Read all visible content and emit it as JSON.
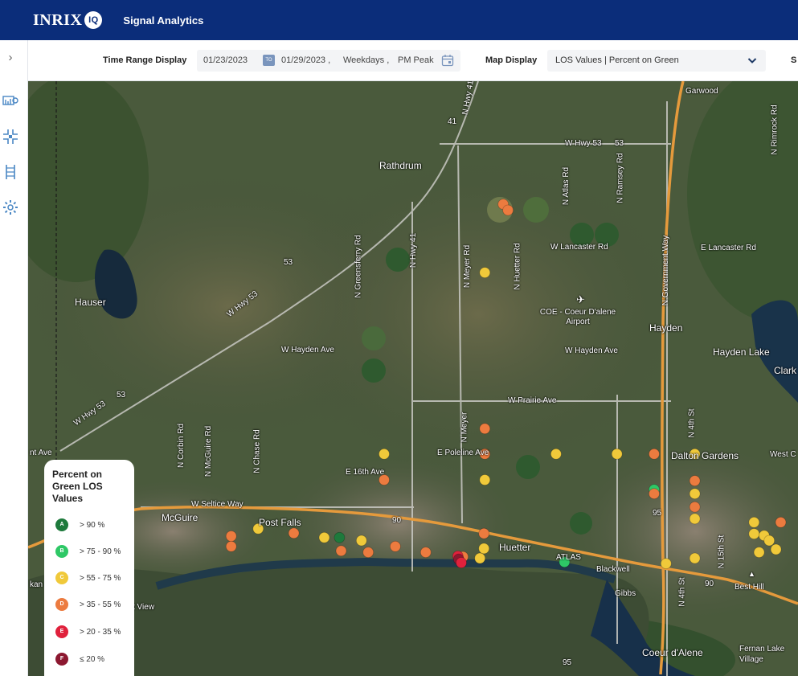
{
  "header": {
    "logo_text": "INRIX",
    "logo_badge": "IQ",
    "app_title": "Signal Analytics"
  },
  "sidebar": {
    "expand_icon": "chevron-right-icon",
    "icons": [
      "signal-dashboard-icon",
      "intersection-icon",
      "corridor-icon",
      "gear-icon"
    ]
  },
  "toolbar": {
    "time_range_label": "Time Range Display",
    "start_date": "01/23/2023",
    "to_badge": "TO",
    "end_date": "01/29/2023 ,",
    "day_type": "Weekdays ,",
    "period": "PM Peak",
    "map_display_label": "Map Display",
    "map_display_value": "LOS Values | Percent on Green",
    "cut_label": "S"
  },
  "map": {
    "labels": [
      "Garwood",
      "Rathdrum",
      "Hauser",
      "W Hwy 53",
      "W Hwy 53",
      "W Hwy 53",
      "41",
      "53",
      "53",
      "53",
      "N Hwy 41",
      "N Hwy 41",
      "N Greensferry Rd",
      "N Meyer Rd",
      "N Huetter Rd",
      "N Atlas Rd",
      "N Ramsey Rd",
      "N Rimrock Rd",
      "W Lancaster Rd",
      "E Lancaster Rd",
      "COE - Coeur D'alene Airport",
      "Hayden",
      "W Hayden Ave",
      "W Hayden Ave",
      "Hayden Lake",
      "Clark",
      "W Prairie Ave",
      "N Meyer",
      "E Poleline Ave",
      "E 16th Ave",
      "N Corbin Rd",
      "N McGuire Rd",
      "N Chase Rd",
      "W Seltice Way",
      "McGuire",
      "Post Falls",
      "Huetter",
      "ATLAS",
      "Blackwell",
      "Gibbs",
      "Dalton Gardens",
      "West C",
      "N 4th St",
      "N 4th St",
      "N 15th St",
      "Best Hill",
      "Fernan Lake Village",
      "Coeur d'Alene",
      "N Government Way",
      "95",
      "95",
      "90",
      "90",
      "nt Ave",
      "kan",
      "t View"
    ],
    "signal_colors": {
      "A": "#1e7a3c",
      "B": "#2ec866",
      "C": "#f0c93a",
      "D": "#ec7b3f",
      "E": "#e0213c",
      "F": "#8c1830"
    },
    "signals": [
      {
        "los": "D",
        "lat": 47.8172,
        "lon": -116.8862
      },
      {
        "los": "D",
        "lat": 47.8152,
        "lon": -116.8834
      },
      {
        "los": "C",
        "lat": 47.794,
        "lon": -116.8971
      },
      {
        "los": "D",
        "lat": 47.741,
        "lon": -116.8971
      },
      {
        "los": "C",
        "lat": 47.7324,
        "lon": -116.9566
      },
      {
        "los": "D",
        "lat": 47.7324,
        "lon": -116.8971
      },
      {
        "los": "C",
        "lat": 47.7324,
        "lon": -116.855
      },
      {
        "los": "C",
        "lat": 47.7324,
        "lon": -116.819
      },
      {
        "los": "D",
        "lat": 47.7324,
        "lon": -116.797
      },
      {
        "los": "C",
        "lat": 47.7324,
        "lon": -116.773
      },
      {
        "los": "D",
        "lat": 47.7236,
        "lon": -116.9566
      },
      {
        "los": "C",
        "lat": 47.7236,
        "lon": -116.8971
      },
      {
        "los": "B",
        "lat": 47.7203,
        "lon": -116.797
      },
      {
        "los": "D",
        "lat": 47.7189,
        "lon": -116.797
      },
      {
        "los": "D",
        "lat": 47.7233,
        "lon": -116.773
      },
      {
        "los": "C",
        "lat": 47.7189,
        "lon": -116.773
      },
      {
        "los": "D",
        "lat": 47.7144,
        "lon": -116.773
      },
      {
        "los": "C",
        "lat": 47.7104,
        "lon": -116.773
      },
      {
        "los": "C",
        "lat": 47.7092,
        "lon": -116.738
      },
      {
        "los": "D",
        "lat": 47.7092,
        "lon": -116.7222
      },
      {
        "los": "C",
        "lat": 47.7053,
        "lon": -116.738
      },
      {
        "los": "C",
        "lat": 47.7047,
        "lon": -116.732
      },
      {
        "los": "C",
        "lat": 47.703,
        "lon": -116.729
      },
      {
        "los": "C",
        "lat": 47.7,
        "lon": -116.725
      },
      {
        "los": "C",
        "lat": 47.699,
        "lon": -116.735
      },
      {
        "los": "C",
        "lat": 47.697,
        "lon": -116.773
      },
      {
        "los": "C",
        "lat": 47.6952,
        "lon": -116.79
      },
      {
        "los": "B",
        "lat": 47.6957,
        "lon": -116.85
      },
      {
        "los": "C",
        "lat": 47.697,
        "lon": -116.9
      },
      {
        "los": "D",
        "lat": 47.6975,
        "lon": -116.91
      },
      {
        "los": "E",
        "lat": 47.6977,
        "lon": -116.913
      },
      {
        "los": "D",
        "lat": 47.699,
        "lon": -116.932
      },
      {
        "los": "D",
        "lat": 47.701,
        "lon": -116.95
      },
      {
        "los": "C",
        "lat": 47.703,
        "lon": -116.97
      },
      {
        "los": "A",
        "lat": 47.704,
        "lon": -116.983
      },
      {
        "los": "C",
        "lat": 47.704,
        "lon": -116.992
      },
      {
        "los": "D",
        "lat": 47.7055,
        "lon": -117.01
      },
      {
        "los": "C",
        "lat": 47.707,
        "lon": -117.031
      },
      {
        "los": "D",
        "lat": 47.7045,
        "lon": -117.047
      },
      {
        "los": "D",
        "lat": 47.701,
        "lon": -117.047
      },
      {
        "los": "D",
        "lat": 47.6995,
        "lon": -116.982
      },
      {
        "los": "D",
        "lat": 47.699,
        "lon": -116.966
      },
      {
        "los": "F",
        "lat": 47.6967,
        "lon": -116.9125
      },
      {
        "los": "E",
        "lat": 47.6955,
        "lon": -116.911
      },
      {
        "los": "D",
        "lat": 47.7054,
        "lon": -116.8976
      },
      {
        "los": "C",
        "lat": 47.7003,
        "lon": -116.8976
      }
    ]
  },
  "legend": {
    "title": "Percent on Green LOS Values",
    "items": [
      {
        "grade": "A",
        "range": "> 90 %"
      },
      {
        "grade": "B",
        "range": "> 75 - 90 %"
      },
      {
        "grade": "C",
        "range": "> 55 - 75 %"
      },
      {
        "grade": "D",
        "range": "> 35 - 55 %"
      },
      {
        "grade": "E",
        "range": "> 20 - 35 %"
      },
      {
        "grade": "F",
        "range": "≤ 20 %"
      }
    ]
  }
}
